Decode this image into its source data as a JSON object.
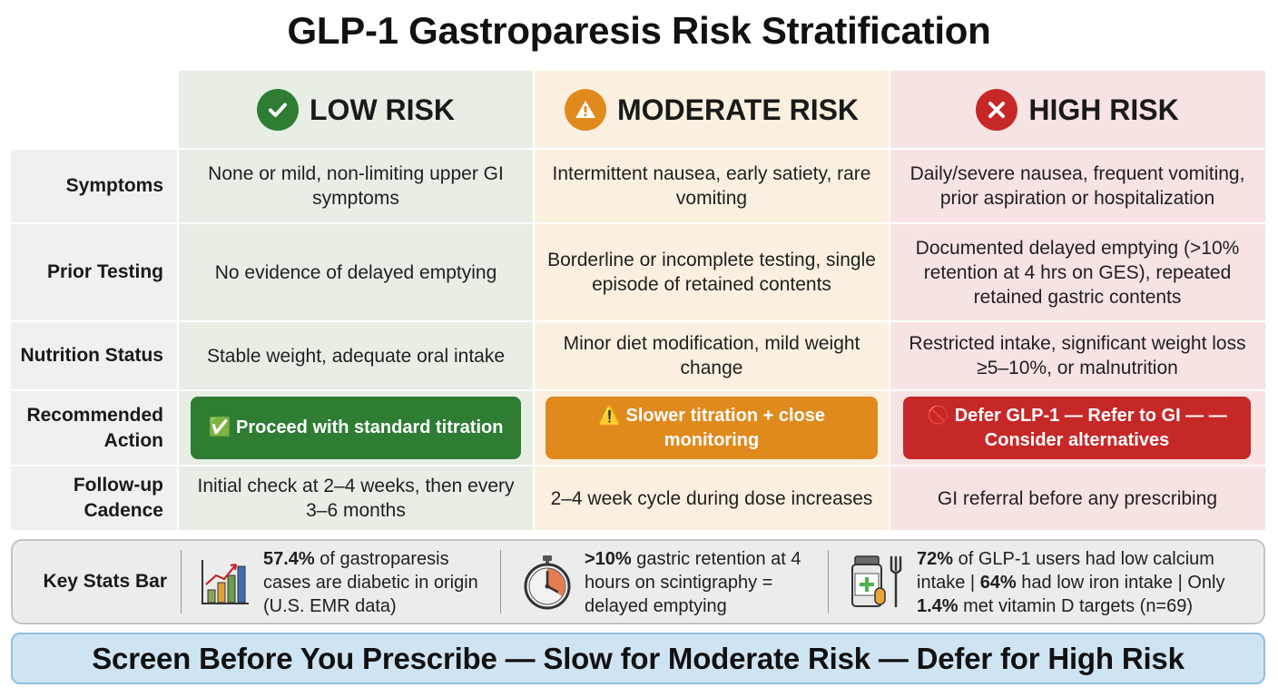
{
  "title": "GLP-1 Gastroparesis Risk Stratification",
  "colors": {
    "low": "#2e7d32",
    "moderate": "#e08a1e",
    "high": "#c62828"
  },
  "columns": [
    {
      "key": "low",
      "label": "LOW RISK",
      "icon": "check-circle-icon"
    },
    {
      "key": "moderate",
      "label": "MODERATE RISK",
      "icon": "warning-circle-icon"
    },
    {
      "key": "high",
      "label": "HIGH RISK",
      "icon": "x-circle-icon"
    }
  ],
  "rows": [
    {
      "label": "Symptoms",
      "low": "None or mild, non-limiting upper GI symptoms",
      "moderate": "Intermittent nausea, early satiety, rare vomiting",
      "high": "Daily/severe nausea, frequent vomiting, prior aspiration or hospitalization"
    },
    {
      "label": "Prior Testing",
      "low": "No evidence of delayed emptying",
      "moderate": "Borderline or incomplete testing, single episode of retained contents",
      "high": "Documented delayed emptying (>10% retention at 4 hrs on GES), repeated retained gastric contents"
    },
    {
      "label": "Nutrition Status",
      "low": "Stable weight, adequate oral intake",
      "moderate": "Minor diet modification, mild weight change",
      "high": "Restricted intake, significant weight loss ≥5–10%, or malnutrition"
    },
    {
      "label": "Recommended Action",
      "low": "✅ Proceed with standard titration",
      "moderate": "⚠️ Slower titration + close monitoring",
      "high": "🚫 Defer GLP-1 — Refer to GI — — Consider alternatives"
    },
    {
      "label": "Follow-up Cadence",
      "low": "Initial check at 2–4 weeks, then every 3–6 months",
      "moderate": "2–4 week cycle during dose increases",
      "high": "GI referral before any prescribing"
    }
  ],
  "stats": {
    "label": "Key Stats Bar",
    "items": [
      {
        "icon": "bar-chart-icon",
        "bold1": "57.4%",
        "text1": " of gastroparesis cases are diabetic in origin (U.S. EMR data)"
      },
      {
        "icon": "stopwatch-icon",
        "bold1": ">10%",
        "text1": " gastric retention at 4 hours on scintigraphy = delayed emptying"
      },
      {
        "icon": "medicine-bottle-fork-icon",
        "bold1": "72%",
        "text1": " of GLP-1 users had low calcium intake | ",
        "bold2": "64%",
        "text2": " had low iron intake | Only ",
        "bold3": "1.4%",
        "text3": " met vitamin D targets (n=69)"
      }
    ]
  },
  "banner": "Screen Before You Prescribe — Slow for Moderate Risk — Defer for High Risk"
}
